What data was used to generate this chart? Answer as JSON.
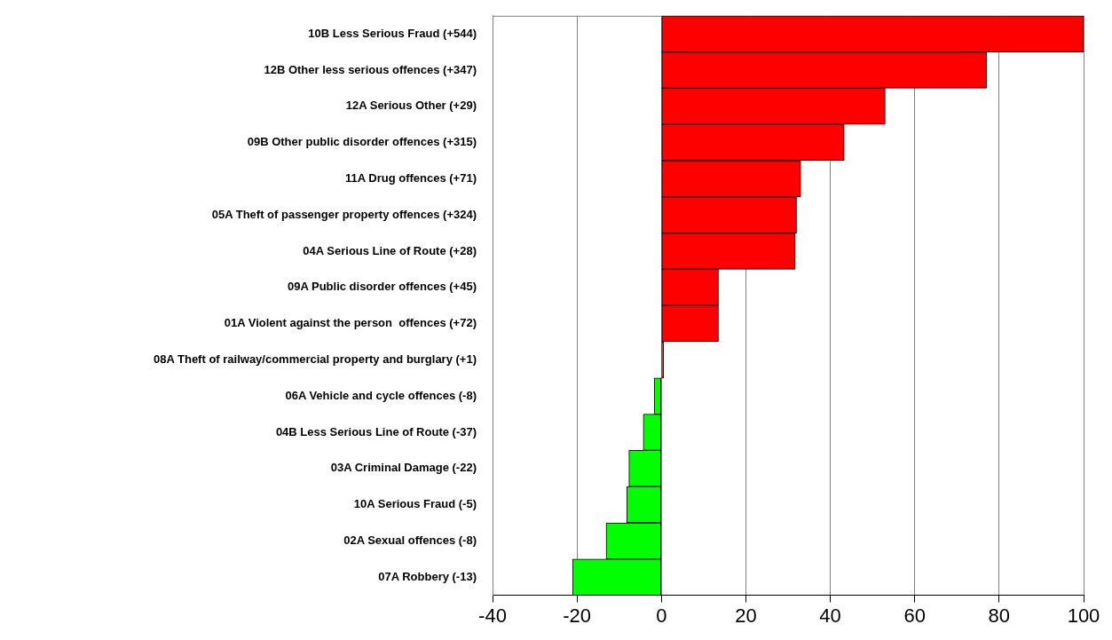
{
  "chart_data": {
    "type": "bar",
    "orientation": "horizontal",
    "categories": [
      "10B Less Serious Fraud (+544)",
      "12B Other less serious offences (+347)",
      "12A Serious Other (+29)",
      "09B Other public disorder offences (+315)",
      "11A Drug offences (+71)",
      "05A Theft of passenger property offences (+324)",
      "04A Serious Line of Route (+28)",
      "09A Public disorder offences (+45)",
      "01A Violent against the person  offences (+72)",
      "08A Theft of railway/commercial property and burglary (+1)",
      "06A Vehicle and cycle offences (-8)",
      "04B Less Serious Line of Route (-37)",
      "03A Criminal Damage (-22)",
      "10A Serious Fraud (-5)",
      "02A Sexual offences (-8)",
      "07A Robbery (-13)"
    ],
    "values": [
      100,
      77,
      53,
      43.3,
      33,
      32,
      31.7,
      13.5,
      13.5,
      0.5,
      -1.7,
      -4.3,
      -7.7,
      -8.2,
      -13.1,
      -21
    ],
    "colors": [
      "#ff0000",
      "#ff0000",
      "#ff0000",
      "#ff0000",
      "#ff0000",
      "#ff0000",
      "#ff0000",
      "#ff0000",
      "#ff0000",
      "#ff0000",
      "#00ff00",
      "#00ff00",
      "#00ff00",
      "#00ff00",
      "#00ff00",
      "#00ff00"
    ],
    "xlim": [
      -40,
      100
    ],
    "xticks": [
      -40,
      -20,
      0,
      20,
      40,
      60,
      80,
      100
    ],
    "grid": "x",
    "legend": false
  }
}
